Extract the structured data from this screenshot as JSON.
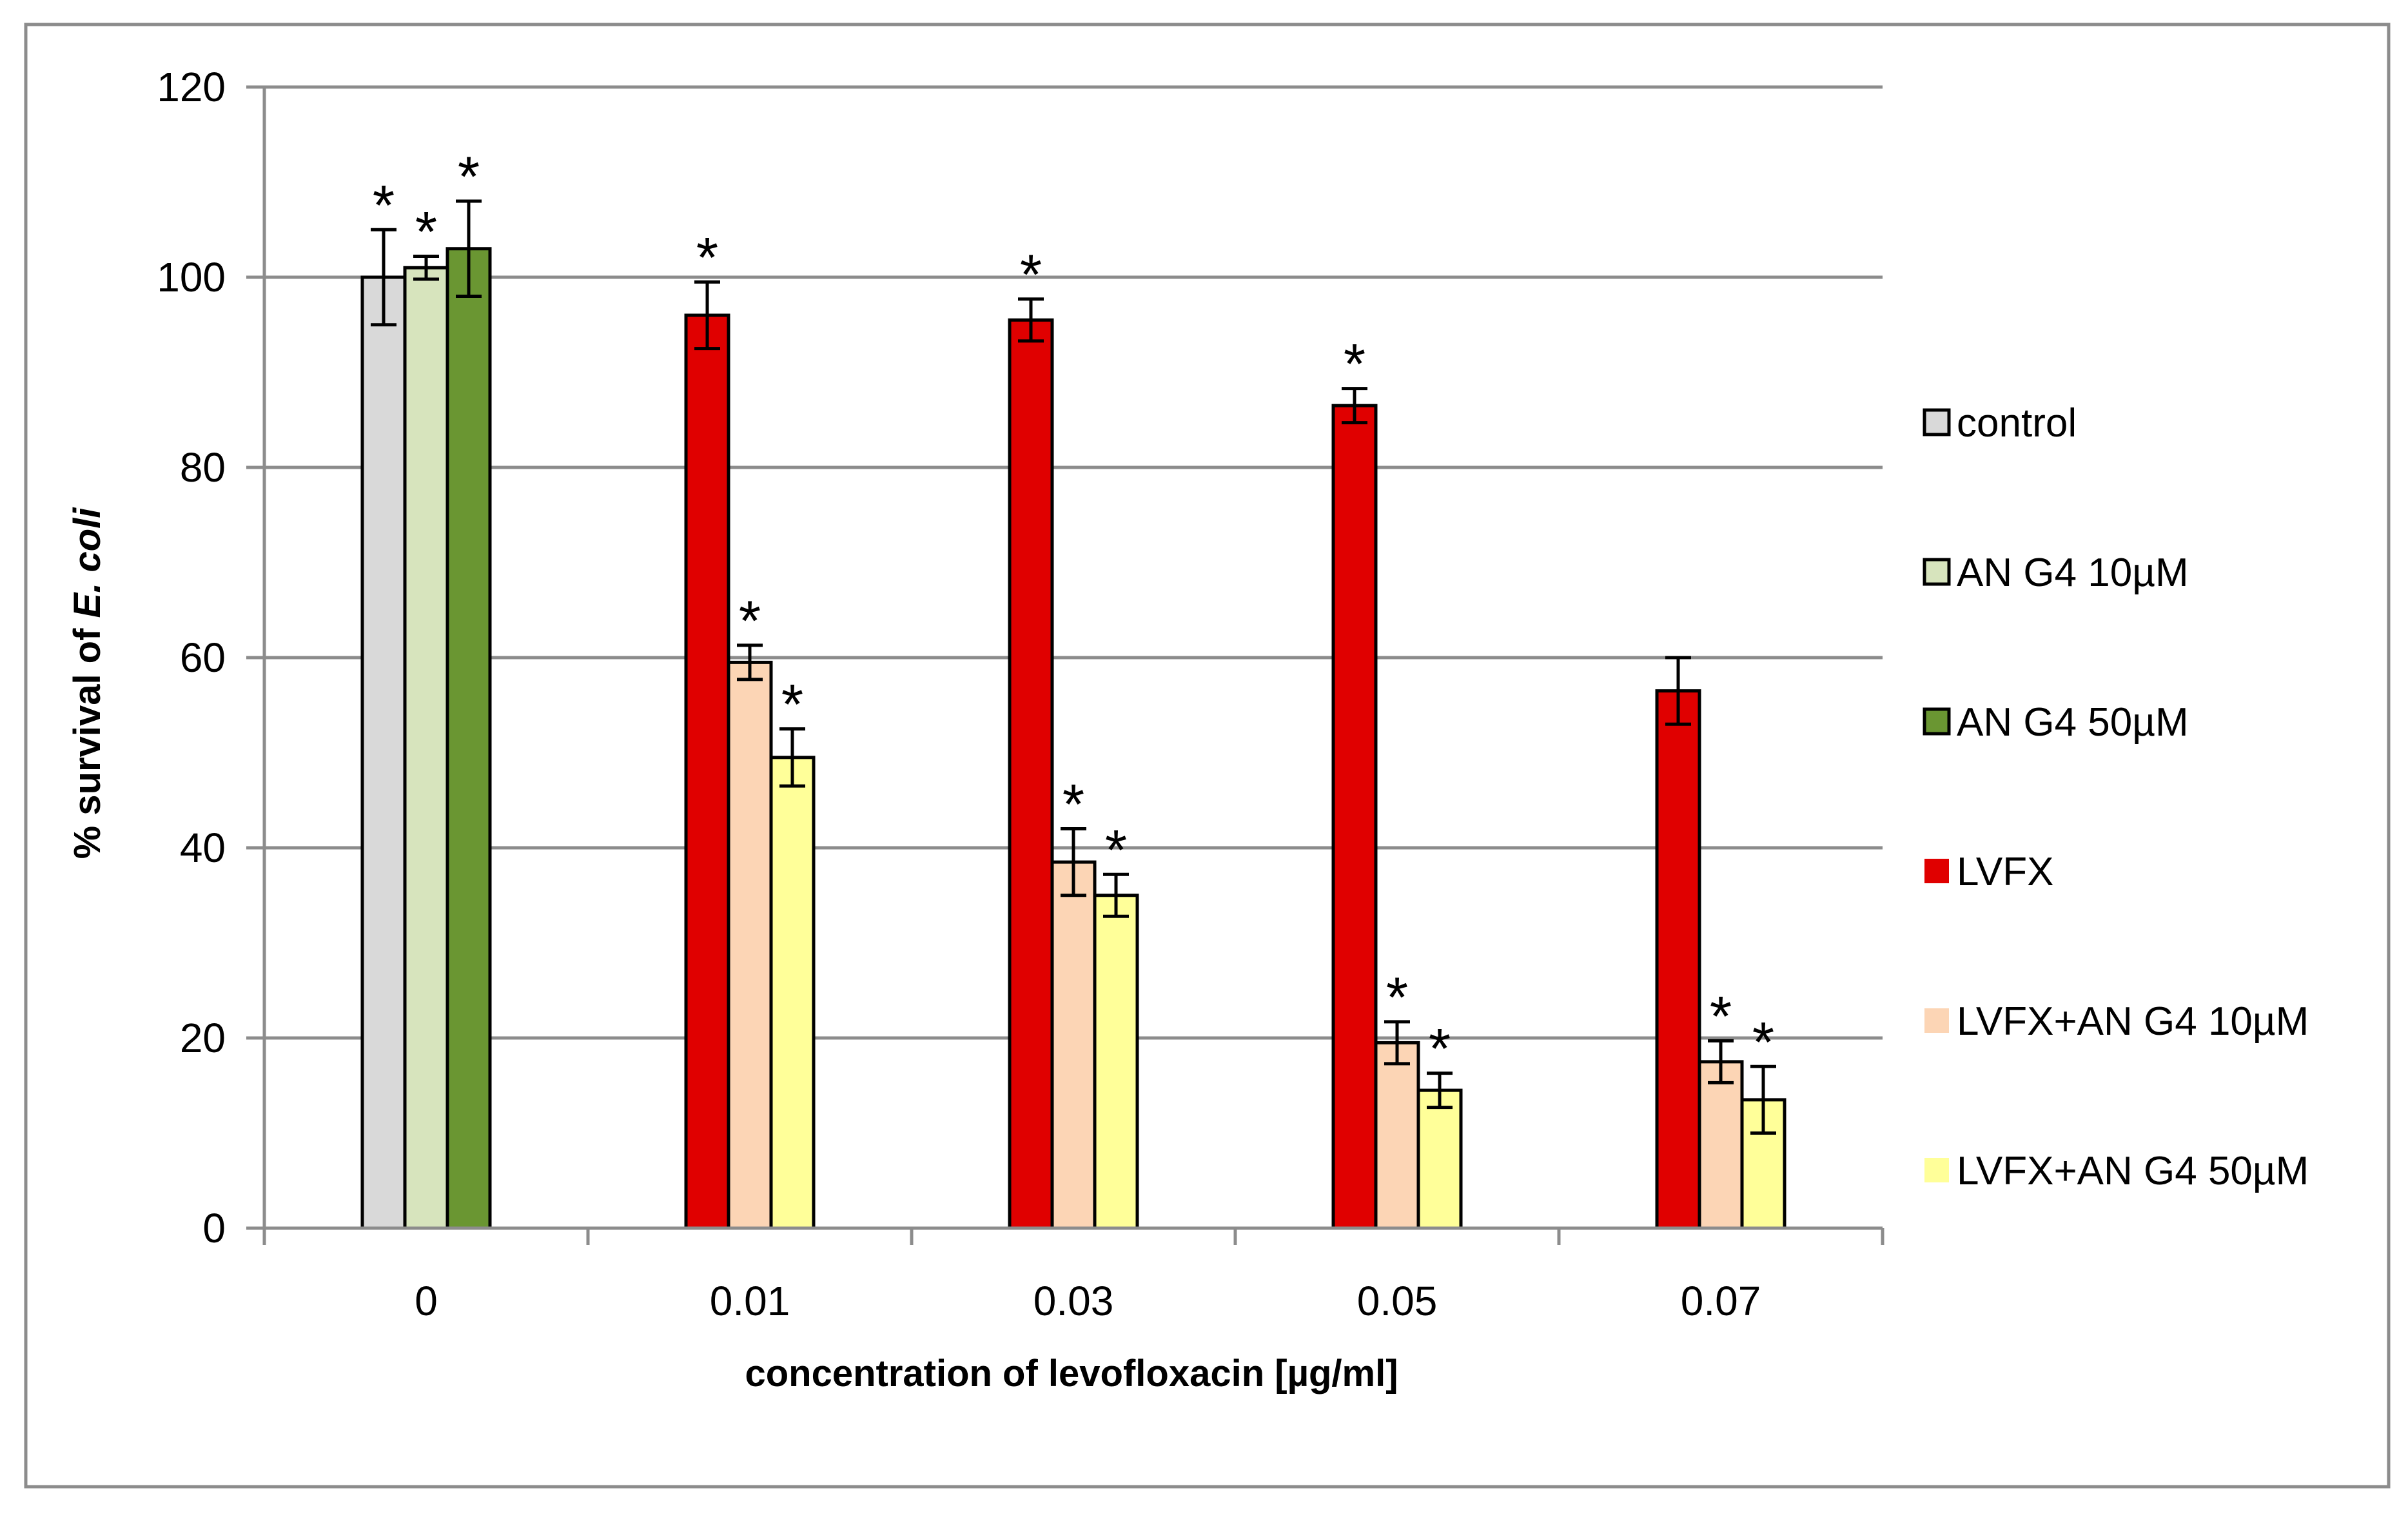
{
  "chart_data": {
    "type": "bar",
    "title": "",
    "xlabel": "concentration of levofloxacin [µg/ml]",
    "ylabel_parts": [
      "% survival of ",
      "E. coli"
    ],
    "ylim": [
      0,
      120
    ],
    "yticks": [
      "0",
      "20",
      "40",
      "60",
      "80",
      "100",
      "120"
    ],
    "grid": true,
    "legend_position": "right",
    "categories": [
      "0",
      "0.01",
      "0.03",
      "0.05",
      "0.07"
    ],
    "series": [
      {
        "name": "control",
        "color": "#d9d9d9",
        "values": [
          100,
          null,
          null,
          null,
          null
        ],
        "errors": [
          5,
          null,
          null,
          null,
          null
        ],
        "significant": [
          true,
          false,
          false,
          false,
          false
        ]
      },
      {
        "name": "AN G4 10µM",
        "color": "#d7e4bd",
        "values": [
          101,
          null,
          null,
          null,
          null
        ],
        "errors": [
          1.2,
          null,
          null,
          null,
          null
        ],
        "significant": [
          true,
          false,
          false,
          false,
          false
        ]
      },
      {
        "name": "AN G4 50µM",
        "color": "#6a9632",
        "values": [
          103,
          null,
          null,
          null,
          null
        ],
        "errors": [
          5,
          null,
          null,
          null,
          null
        ],
        "significant": [
          true,
          false,
          false,
          false,
          false
        ]
      },
      {
        "name": "LVFX",
        "color": "#e00000",
        "values": [
          null,
          96,
          95.5,
          86.5,
          56.5
        ],
        "errors": [
          null,
          3.5,
          2.2,
          1.8,
          3.5
        ],
        "significant": [
          false,
          true,
          true,
          true,
          false
        ]
      },
      {
        "name": "LVFX+AN G4 10µM",
        "color": "#fcd5b5",
        "values": [
          null,
          59.5,
          38.5,
          19.5,
          17.5
        ],
        "errors": [
          null,
          1.8,
          3.5,
          2.2,
          2.2
        ],
        "significant": [
          false,
          true,
          true,
          true,
          true
        ]
      },
      {
        "name": "LVFX+AN G4  50µM",
        "color": "#ffff99",
        "values": [
          null,
          49.5,
          35,
          14.5,
          13.5
        ],
        "errors": [
          null,
          3,
          2.2,
          1.8,
          3.5
        ],
        "significant": [
          false,
          true,
          true,
          true,
          true
        ]
      }
    ],
    "significance_marker": "*"
  }
}
